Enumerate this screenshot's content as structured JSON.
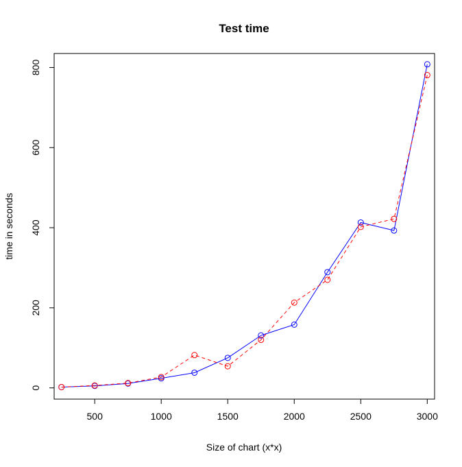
{
  "chart_data": {
    "type": "line",
    "title": "Test time",
    "xlabel": "Size of chart (x*x)",
    "ylabel": "time in seconds",
    "xlim": [
      195,
      3055
    ],
    "ylim": [
      -28,
      835
    ],
    "x_ticks": [
      500,
      1000,
      1500,
      2000,
      2500,
      3000
    ],
    "y_ticks": [
      0,
      200,
      400,
      600,
      800
    ],
    "x": [
      250,
      500,
      750,
      1000,
      1250,
      1500,
      1750,
      2000,
      2250,
      2500,
      2750,
      3000
    ],
    "series": [
      {
        "name": "blue",
        "color": "#0000ff",
        "line_style": "solid",
        "values": [
          2,
          5,
          11,
          24,
          38,
          75,
          131,
          158,
          289,
          413,
          393,
          808
        ]
      },
      {
        "name": "red",
        "color": "#ff0000",
        "line_style": "dashed",
        "values": [
          2,
          6,
          12,
          27,
          82,
          54,
          120,
          213,
          270,
          402,
          422,
          781
        ]
      }
    ]
  }
}
